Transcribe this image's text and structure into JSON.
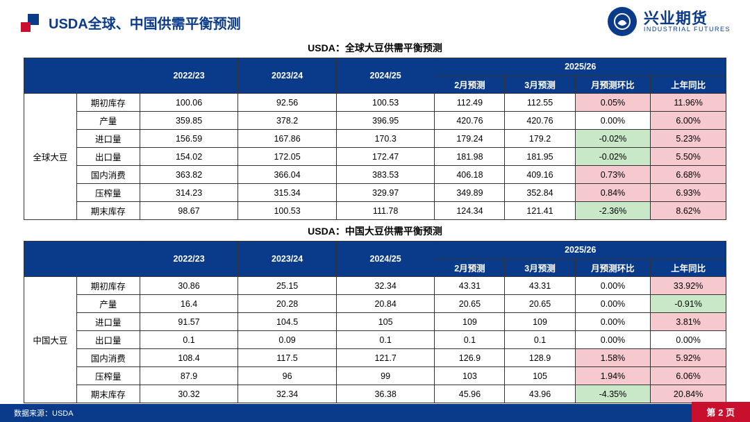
{
  "page_title": "USDA全球、中国供需平衡预测",
  "brand": {
    "cn": "兴业期货",
    "en": "INDUSTRIAL FUTURES"
  },
  "colors": {
    "header_bg": "#0a3b8a",
    "accent_red": "#c8102e",
    "cell_pink": "#f6c9cf",
    "cell_green": "#c8e8c8",
    "border": "#333333",
    "background": "#ffffff"
  },
  "tables": [
    {
      "subtitle": "USDA：全球大豆供需平衡预测",
      "group_label": "全球大豆",
      "year_cols": [
        "2022/23",
        "2023/24",
        "2024/25"
      ],
      "forecast_group": "2025/26",
      "forecast_cols": [
        "2月预测",
        "3月预测",
        "月预测环比",
        "上年同比"
      ],
      "rows": [
        {
          "label": "期初库存",
          "vals": [
            "100.06",
            "92.56",
            "100.53",
            "112.49",
            "112.55"
          ],
          "mom": {
            "v": "0.05%",
            "c": "pink"
          },
          "yoy": {
            "v": "11.96%",
            "c": "pink"
          }
        },
        {
          "label": "产量",
          "vals": [
            "359.85",
            "378.2",
            "396.95",
            "420.76",
            "420.76"
          ],
          "mom": {
            "v": "0.00%",
            "c": "none"
          },
          "yoy": {
            "v": "6.00%",
            "c": "pink"
          }
        },
        {
          "label": "进口量",
          "vals": [
            "156.59",
            "167.86",
            "170.3",
            "179.24",
            "179.2"
          ],
          "mom": {
            "v": "-0.02%",
            "c": "green"
          },
          "yoy": {
            "v": "5.23%",
            "c": "pink"
          }
        },
        {
          "label": "出口量",
          "vals": [
            "154.02",
            "172.05",
            "172.47",
            "181.98",
            "181.95"
          ],
          "mom": {
            "v": "-0.02%",
            "c": "green"
          },
          "yoy": {
            "v": "5.50%",
            "c": "pink"
          }
        },
        {
          "label": "国内消费",
          "vals": [
            "363.82",
            "366.04",
            "383.53",
            "406.18",
            "409.16"
          ],
          "mom": {
            "v": "0.73%",
            "c": "pink"
          },
          "yoy": {
            "v": "6.68%",
            "c": "pink"
          }
        },
        {
          "label": "压榨量",
          "vals": [
            "314.23",
            "315.34",
            "329.97",
            "349.89",
            "352.84"
          ],
          "mom": {
            "v": "0.84%",
            "c": "pink"
          },
          "yoy": {
            "v": "6.93%",
            "c": "pink"
          }
        },
        {
          "label": "期末库存",
          "vals": [
            "98.67",
            "100.53",
            "111.78",
            "124.34",
            "121.41"
          ],
          "mom": {
            "v": "-2.36%",
            "c": "green"
          },
          "yoy": {
            "v": "8.62%",
            "c": "pink"
          }
        }
      ]
    },
    {
      "subtitle": "USDA：中国大豆供需平衡预测",
      "group_label": "中国大豆",
      "year_cols": [
        "2022/23",
        "2023/24",
        "2024/25"
      ],
      "forecast_group": "2025/26",
      "forecast_cols": [
        "2月预测",
        "3月预测",
        "月预测环比",
        "上年同比"
      ],
      "rows": [
        {
          "label": "期初库存",
          "vals": [
            "30.86",
            "25.15",
            "32.34",
            "43.31",
            "43.31"
          ],
          "mom": {
            "v": "0.00%",
            "c": "none"
          },
          "yoy": {
            "v": "33.92%",
            "c": "pink"
          }
        },
        {
          "label": "产量",
          "vals": [
            "16.4",
            "20.28",
            "20.84",
            "20.65",
            "20.65"
          ],
          "mom": {
            "v": "0.00%",
            "c": "none"
          },
          "yoy": {
            "v": "-0.91%",
            "c": "green"
          }
        },
        {
          "label": "进口量",
          "vals": [
            "91.57",
            "104.5",
            "105",
            "109",
            "109"
          ],
          "mom": {
            "v": "0.00%",
            "c": "none"
          },
          "yoy": {
            "v": "3.81%",
            "c": "pink"
          }
        },
        {
          "label": "出口量",
          "vals": [
            "0.1",
            "0.09",
            "0.1",
            "0.1",
            "0.1"
          ],
          "mom": {
            "v": "0.00%",
            "c": "none"
          },
          "yoy": {
            "v": "0.00%",
            "c": "none"
          }
        },
        {
          "label": "国内消费",
          "vals": [
            "108.4",
            "117.5",
            "121.7",
            "126.9",
            "128.9"
          ],
          "mom": {
            "v": "1.58%",
            "c": "pink"
          },
          "yoy": {
            "v": "5.92%",
            "c": "pink"
          }
        },
        {
          "label": "压榨量",
          "vals": [
            "87.9",
            "96",
            "99",
            "103",
            "105"
          ],
          "mom": {
            "v": "1.94%",
            "c": "pink"
          },
          "yoy": {
            "v": "6.06%",
            "c": "pink"
          }
        },
        {
          "label": "期末库存",
          "vals": [
            "30.32",
            "32.34",
            "36.38",
            "45.96",
            "43.96"
          ],
          "mom": {
            "v": "-4.35%",
            "c": "green"
          },
          "yoy": {
            "v": "20.84%",
            "c": "pink"
          }
        }
      ]
    }
  ],
  "footer_source": "数据来源：USDA",
  "page_number": "第 2 页"
}
